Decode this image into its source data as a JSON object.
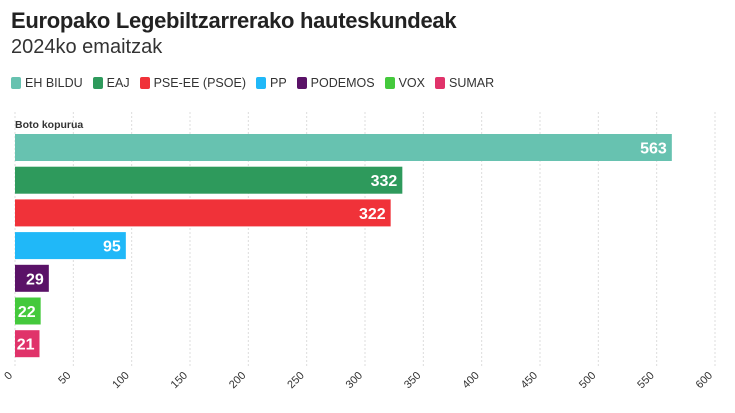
{
  "title": "Europako Legebiltzarrerako hauteskundeak",
  "subtitle": "2024ko emaitzak",
  "chart_data": {
    "type": "bar",
    "orientation": "horizontal",
    "ylabel": "Boto kopurua",
    "categories": [
      "EH BILDU",
      "EAJ",
      "PSE-EE (PSOE)",
      "PP",
      "PODEMOS",
      "VOX",
      "SUMAR"
    ],
    "values": [
      563,
      332,
      322,
      95,
      29,
      22,
      21
    ],
    "colors": [
      "#67c2b0",
      "#2e9a5c",
      "#f03239",
      "#20b8f8",
      "#5a1267",
      "#44c93c",
      "#e0336a"
    ],
    "xlim": [
      0,
      600
    ],
    "xticks": [
      0,
      50,
      100,
      150,
      200,
      250,
      300,
      350,
      400,
      450,
      500,
      550,
      600
    ],
    "grid": true,
    "legend_position": "top-left"
  }
}
